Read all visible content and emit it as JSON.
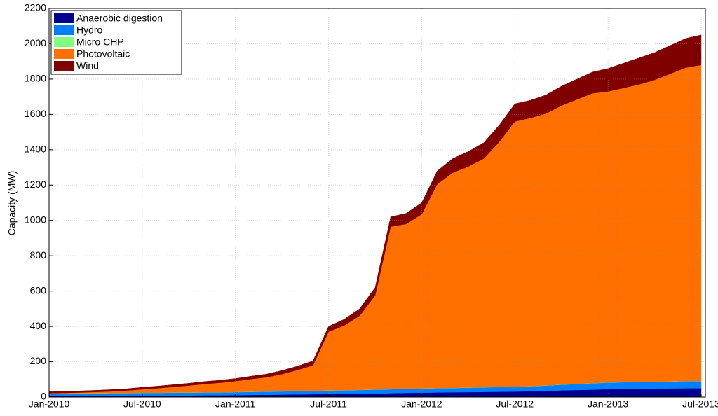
{
  "chart_data": {
    "type": "stacked-area",
    "y_label": "Capacity (MW)",
    "x": [
      "2010-01",
      "2010-02",
      "2010-03",
      "2010-04",
      "2010-05",
      "2010-06",
      "2010-07",
      "2010-08",
      "2010-09",
      "2010-10",
      "2010-11",
      "2010-12",
      "2011-01",
      "2011-02",
      "2011-03",
      "2011-04",
      "2011-05",
      "2011-06",
      "2011-07",
      "2011-08",
      "2011-09",
      "2011-10",
      "2011-11",
      "2011-12",
      "2012-01",
      "2012-02",
      "2012-03",
      "2012-04",
      "2012-05",
      "2012-06",
      "2012-07",
      "2012-08",
      "2012-09",
      "2012-10",
      "2012-11",
      "2012-12",
      "2013-01",
      "2013-02",
      "2013-03",
      "2013-04",
      "2013-05",
      "2013-06",
      "2013-07"
    ],
    "series": [
      {
        "name": "Anaerobic digestion",
        "color": "#000090",
        "values": [
          5,
          5,
          6,
          6,
          7,
          7,
          8,
          8,
          9,
          9,
          10,
          10,
          11,
          12,
          13,
          14,
          15,
          16,
          17,
          18,
          19,
          20,
          22,
          24,
          25,
          26,
          27,
          28,
          29,
          30,
          31,
          33,
          35,
          38,
          40,
          42,
          45,
          46,
          47,
          48,
          49,
          50,
          50
        ]
      },
      {
        "name": "Hydro",
        "color": "#0080ff",
        "values": [
          15,
          15,
          15,
          15,
          15,
          15,
          16,
          16,
          16,
          16,
          16,
          16,
          17,
          17,
          18,
          18,
          19,
          19,
          20,
          20,
          21,
          22,
          22,
          23,
          23,
          24,
          24,
          25,
          26,
          27,
          27,
          28,
          30,
          32,
          34,
          36,
          37,
          38,
          38,
          39,
          39,
          40,
          40
        ]
      },
      {
        "name": "Micro CHP",
        "color": "#80ff80",
        "values": [
          1,
          1,
          1,
          1,
          1,
          1,
          1,
          1,
          1,
          1,
          1,
          1,
          1,
          1,
          1,
          1,
          1,
          1,
          1,
          1,
          1,
          1,
          1,
          1,
          1,
          1,
          1,
          1,
          1,
          1,
          1,
          1,
          1,
          1,
          1,
          1,
          1,
          1,
          1,
          1,
          1,
          1,
          1
        ]
      },
      {
        "name": "Photovoltaic",
        "color": "#ff7000",
        "values": [
          1,
          3,
          4,
          7,
          9,
          14,
          19,
          25,
          32,
          39,
          47,
          54,
          61,
          72,
          80,
          97,
          118,
          144,
          332,
          366,
          419,
          532,
          920,
          932,
          986,
          1154,
          1218,
          1251,
          1294,
          1387,
          1501,
          1518,
          1539,
          1579,
          1610,
          1641,
          1647,
          1665,
          1684,
          1707,
          1741,
          1774,
          1789
        ]
      },
      {
        "name": "Wind",
        "color": "#800000",
        "values": [
          8,
          8,
          9,
          9,
          10,
          10,
          11,
          12,
          12,
          13,
          14,
          14,
          15,
          16,
          18,
          20,
          22,
          25,
          30,
          35,
          40,
          45,
          55,
          60,
          65,
          75,
          80,
          85,
          90,
          95,
          100,
          100,
          105,
          110,
          115,
          120,
          130,
          140,
          150,
          155,
          160,
          165,
          170
        ]
      }
    ],
    "xlim": [
      "2010-01",
      "2013-07"
    ],
    "xticks": [
      {
        "value": "2010-01",
        "label": "Jan-2010"
      },
      {
        "value": "2010-07",
        "label": "Jul-2010"
      },
      {
        "value": "2011-01",
        "label": "Jan-2011"
      },
      {
        "value": "2011-07",
        "label": "Jul-2011"
      },
      {
        "value": "2012-01",
        "label": "Jan-2012"
      },
      {
        "value": "2012-07",
        "label": "Jul-2012"
      },
      {
        "value": "2013-01",
        "label": "Jan-2013"
      },
      {
        "value": "2013-07",
        "label": "Jul-2013"
      }
    ],
    "ylim": [
      0,
      2200
    ],
    "yticks": [
      0,
      200,
      400,
      600,
      800,
      1000,
      1200,
      1400,
      1600,
      1800,
      2000,
      2200
    ],
    "grid": true,
    "legend": "upper-left"
  }
}
